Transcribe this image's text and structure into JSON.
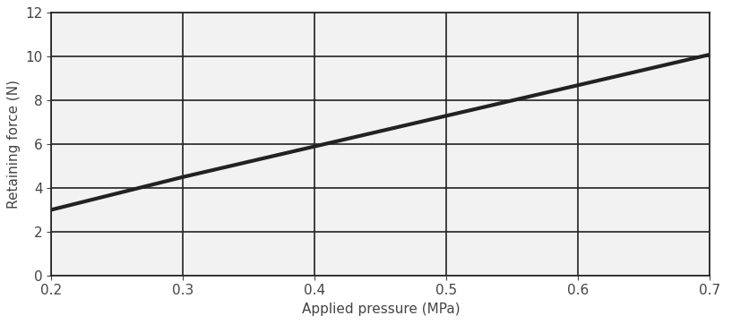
{
  "chart_data": {
    "type": "line",
    "x_label": "Applied pressure (MPa)",
    "y_label": "Retaining force (N)",
    "x": [
      0.2,
      0.3,
      0.4,
      0.5,
      0.6,
      0.7
    ],
    "values": [
      3.0,
      4.5,
      5.9,
      7.3,
      8.7,
      10.1
    ],
    "color": "#222222",
    "xlim": [
      0.2,
      0.7
    ],
    "xticks": [
      0.2,
      0.3,
      0.4,
      0.5,
      0.6,
      0.7
    ],
    "ylim": [
      0,
      12
    ],
    "yticks": [
      0,
      2,
      4,
      6,
      8,
      10,
      12
    ],
    "grid": true
  }
}
